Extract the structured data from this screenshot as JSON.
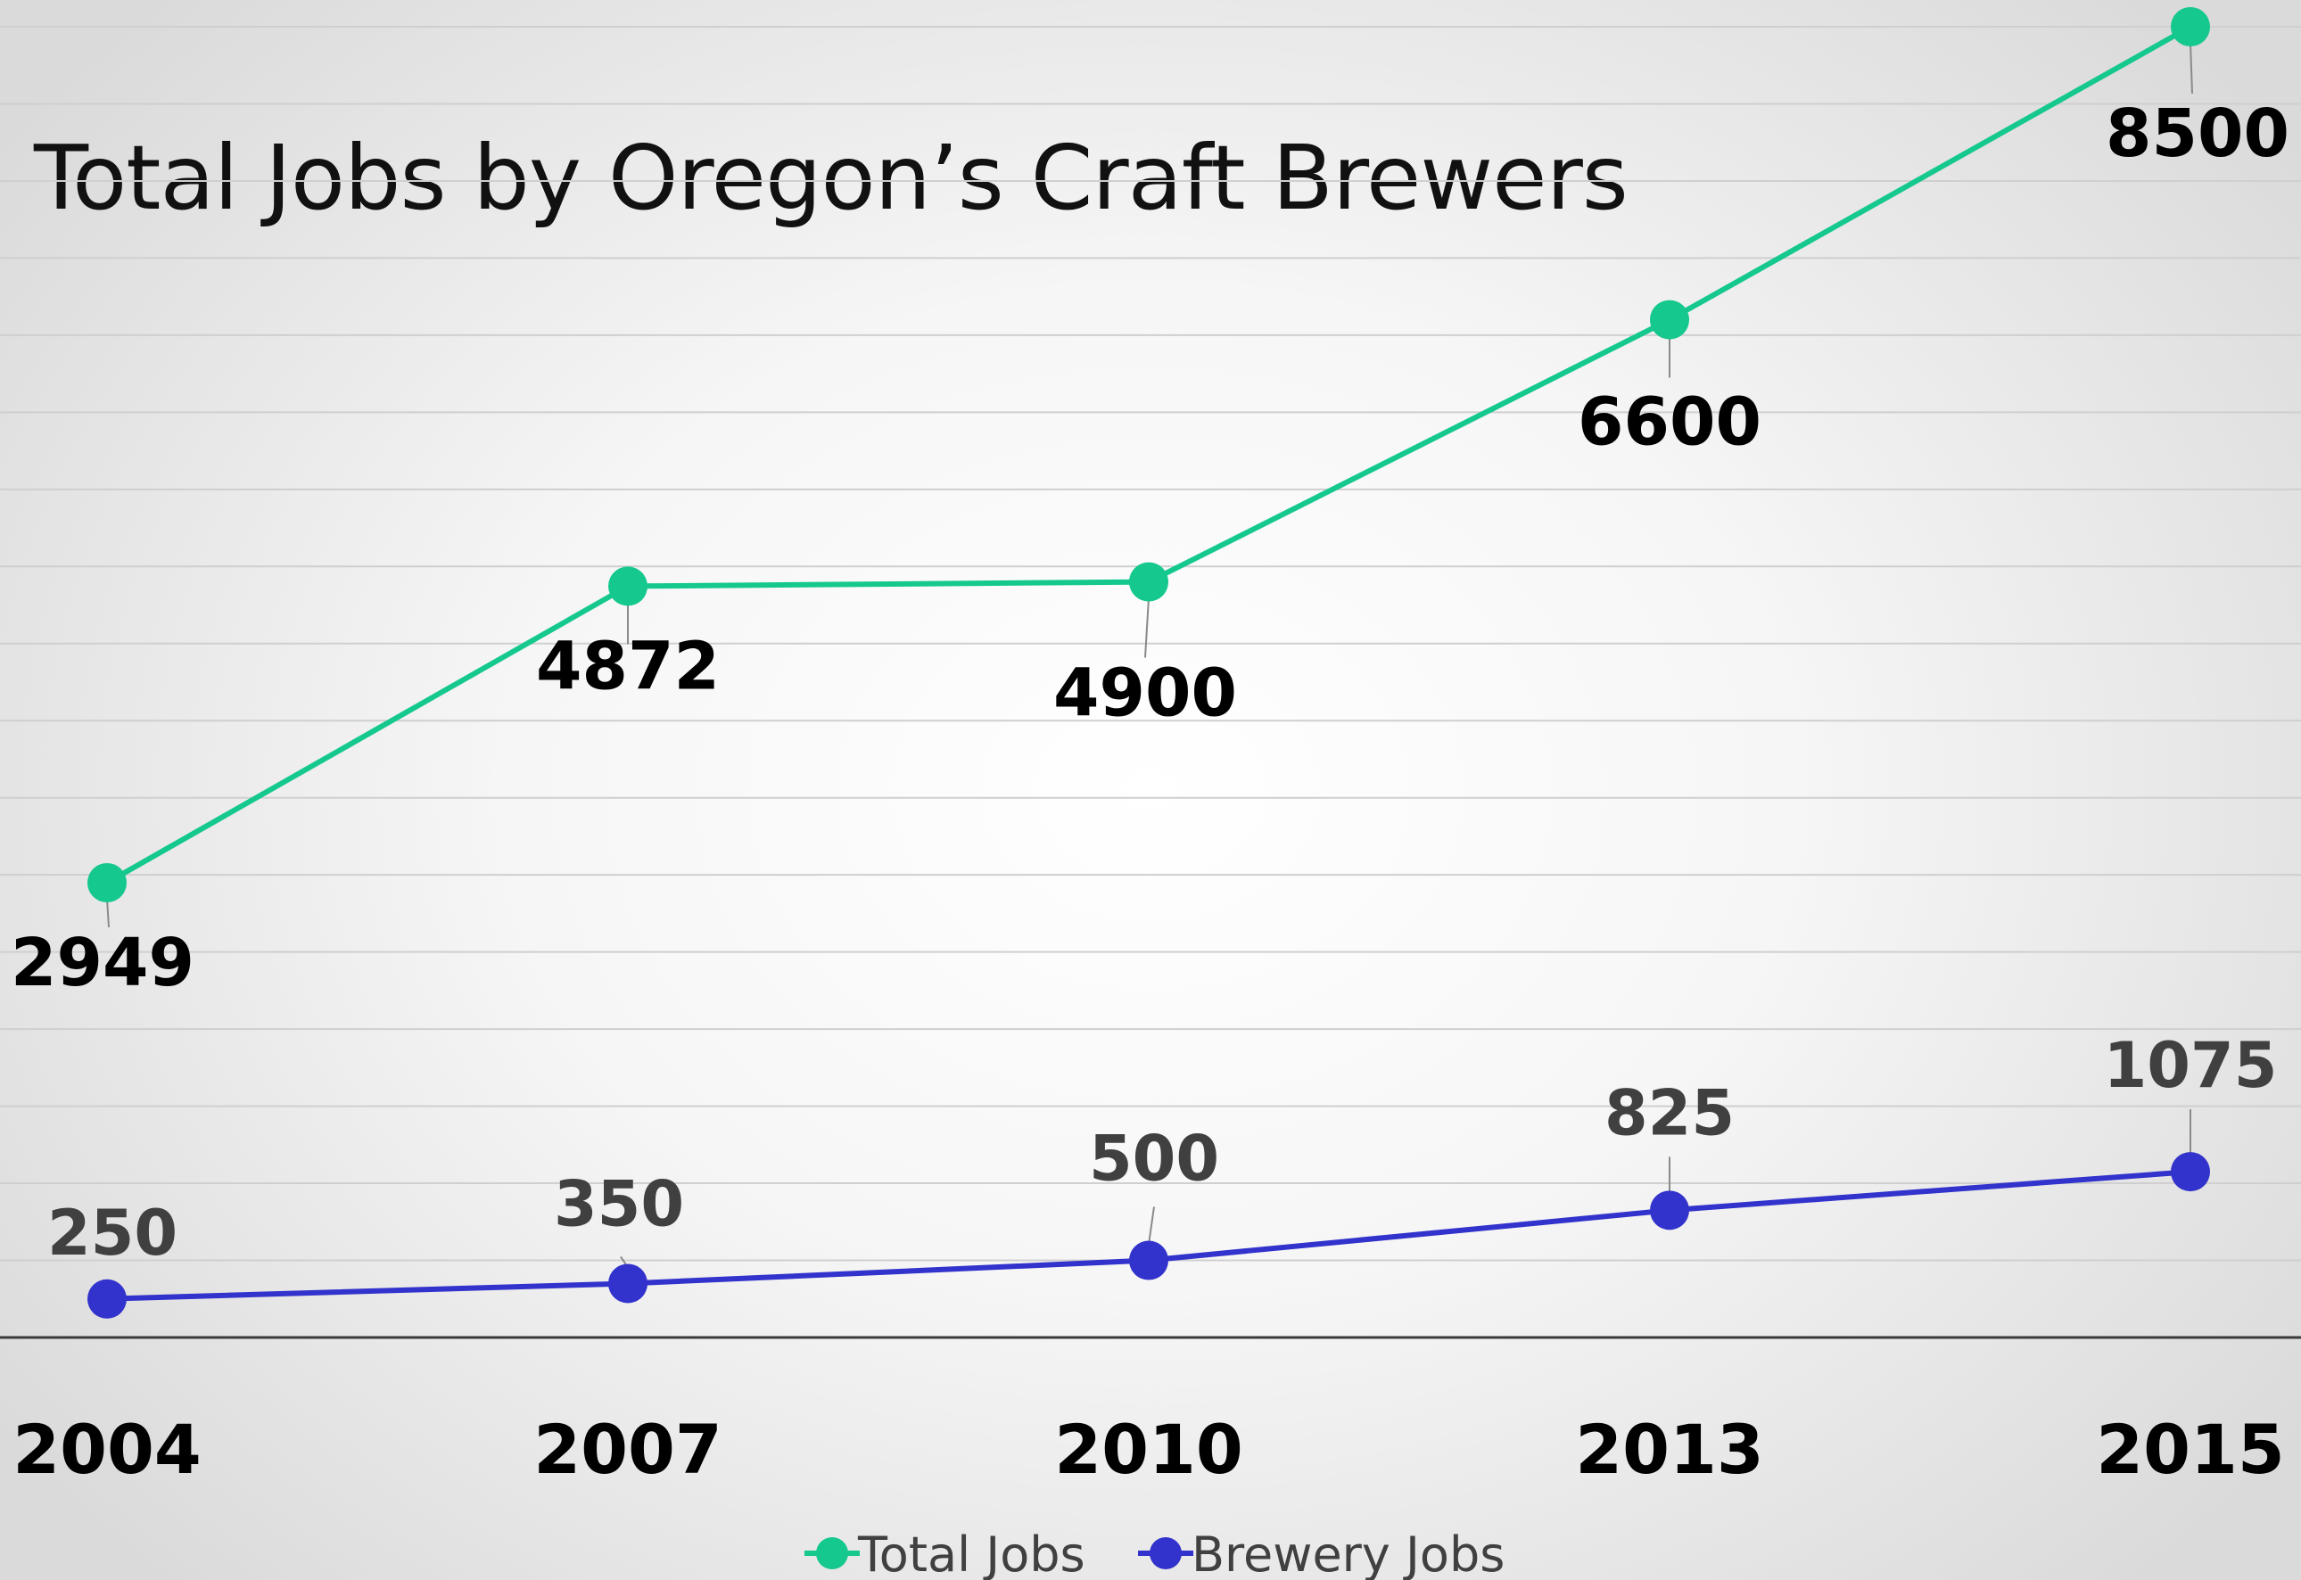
{
  "chart_data": {
    "type": "line",
    "title": "Total Jobs by Oregon’s Craft Brewers",
    "xlabel": "",
    "ylabel": "",
    "categories": [
      "2004",
      "2007",
      "2010",
      "2013",
      "2015"
    ],
    "ylim": [
      0,
      8500
    ],
    "grid": true,
    "legend": "bottom",
    "series": [
      {
        "name": "Total Jobs",
        "color": "#14c88e",
        "values": [
          2949,
          4872,
          4900,
          6600,
          8500
        ],
        "labels": [
          "2949",
          "4872",
          "4900",
          "6600",
          "8500"
        ]
      },
      {
        "name": "Brewery Jobs",
        "color": "#3232cc",
        "values": [
          250,
          350,
          500,
          825,
          1075
        ],
        "labels": [
          "250",
          "350",
          "500",
          "825",
          "1075"
        ]
      }
    ]
  }
}
